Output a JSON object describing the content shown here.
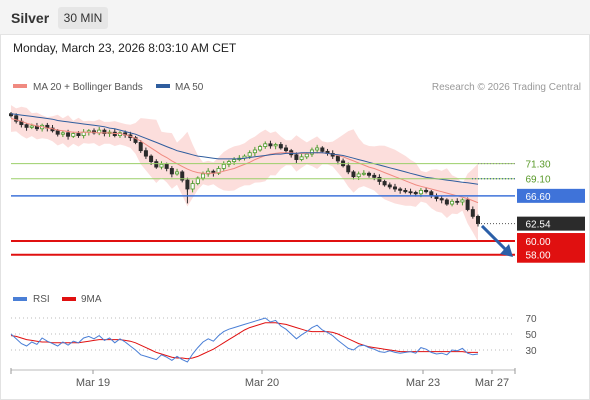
{
  "header": {
    "symbol": "Silver",
    "interval": "30 MIN",
    "datetime": "Monday, March 23, 2026 8:03:10 AM CET"
  },
  "legend": {
    "ma20": "MA 20 + Bollinger Bands",
    "ma50": "MA 50",
    "copyright": "Research © 2026 Trading Central",
    "rsi": "RSI",
    "rsi_ma": "9MA"
  },
  "colors": {
    "ma20": "#f08a80",
    "ma50": "#2f5d9e",
    "bollinger_fill": "#fbd3d0",
    "resistance": "#9bcf6a",
    "pivot": "#3f73d9",
    "support": "#e01010",
    "candle_up": "#4c9a2a",
    "candle_down": "#2b2b2b",
    "rsi": "#4a7fd6",
    "rsi_ma": "#e01010",
    "arrow": "#2b5fa8"
  },
  "chart_data": [
    {
      "type": "candlestick",
      "title": "Silver",
      "interval": "30 MIN",
      "x_ticks": [
        "Mar 19",
        "Mar 20",
        "Mar 23",
        "Mar 27"
      ],
      "ylim": [
        54.6,
        80.6
      ],
      "grid": false,
      "legend": "top-left",
      "series": [
        {
          "name": "MA 20 + Bollinger Bands",
          "type": "line"
        },
        {
          "name": "MA 50",
          "type": "line"
        }
      ],
      "levels": [
        {
          "label": "71.30",
          "value": 71.3,
          "kind": "resistance"
        },
        {
          "label": "69.10",
          "value": 69.1,
          "kind": "resistance"
        },
        {
          "label": "66.60",
          "value": 66.6,
          "kind": "pivot"
        },
        {
          "label": "62.54",
          "value": 62.54,
          "kind": "last"
        },
        {
          "label": "60.00",
          "value": 60.0,
          "kind": "support"
        },
        {
          "label": "58.00",
          "value": 58.0,
          "kind": "support"
        }
      ],
      "closes": [
        78.3,
        77.5,
        77.0,
        76.6,
        76.8,
        76.4,
        76.9,
        76.5,
        76.1,
        75.6,
        75.8,
        75.3,
        75.7,
        75.4,
        75.9,
        76.1,
        75.8,
        76.2,
        75.7,
        75.9,
        75.4,
        75.8,
        75.5,
        75.1,
        74.4,
        73.2,
        72.4,
        71.6,
        70.8,
        71.2,
        70.6,
        69.8,
        70.1,
        68.9,
        67.6,
        68.4,
        69.2,
        69.8,
        70.2,
        69.9,
        70.6,
        71.2,
        71.6,
        71.9,
        72.1,
        72.4,
        72.9,
        73.3,
        73.8,
        74.2,
        73.9,
        74.1,
        73.6,
        73.2,
        72.6,
        71.9,
        72.3,
        72.7,
        73.3,
        73.6,
        73.1,
        72.8,
        72.4,
        71.7,
        71.0,
        70.1,
        69.4,
        69.8,
        69.9,
        69.6,
        69.3,
        68.7,
        68.2,
        67.9,
        67.6,
        67.4,
        67.2,
        67.1,
        66.9,
        67.4,
        67.2,
        66.6,
        66.2,
        66.0,
        65.4,
        65.8,
        65.7,
        66.0,
        64.6,
        63.6,
        62.54
      ],
      "ma20": [
        77.9,
        77.7,
        77.5,
        77.2,
        77.0,
        76.8,
        76.7,
        76.5,
        76.4,
        76.2,
        76.1,
        76.0,
        75.9,
        75.9,
        75.9,
        75.9,
        75.9,
        75.8,
        75.8,
        75.8,
        75.7,
        75.7,
        75.5,
        75.3,
        75.0,
        74.6,
        74.1,
        73.6,
        73.1,
        72.6,
        72.2,
        71.7,
        71.3,
        70.9,
        70.5,
        70.2,
        70.0,
        69.9,
        69.9,
        69.9,
        70.0,
        70.2,
        70.4,
        70.6,
        70.9,
        71.2,
        71.5,
        71.9,
        72.2,
        72.5,
        72.7,
        72.8,
        72.9,
        72.9,
        72.9,
        72.8,
        72.8,
        72.8,
        72.9,
        72.9,
        72.9,
        72.8,
        72.7,
        72.5,
        72.3,
        72.0,
        71.7,
        71.4,
        71.1,
        70.8,
        70.6,
        70.3,
        70.0,
        69.7,
        69.4,
        69.1,
        68.8,
        68.5,
        68.2,
        68.0,
        67.8,
        67.6,
        67.4,
        67.2,
        67.0,
        66.8,
        66.6,
        66.4,
        66.2,
        65.9,
        65.6
      ],
      "ma50": [
        78.6,
        78.5,
        78.4,
        78.3,
        78.2,
        78.1,
        78.0,
        77.9,
        77.8,
        77.6,
        77.5,
        77.4,
        77.3,
        77.2,
        77.1,
        77.0,
        76.9,
        76.8,
        76.7,
        76.5,
        76.4,
        76.2,
        76.0,
        75.8,
        75.6,
        75.3,
        75.0,
        74.7,
        74.4,
        74.1,
        73.8,
        73.5,
        73.2,
        73.0,
        72.8,
        72.6,
        72.4,
        72.3,
        72.2,
        72.1,
        72.0,
        72.0,
        72.0,
        72.0,
        72.0,
        72.1,
        72.2,
        72.3,
        72.4,
        72.5,
        72.6,
        72.7,
        72.7,
        72.8,
        72.8,
        72.8,
        72.9,
        72.9,
        72.9,
        72.9,
        72.9,
        72.8,
        72.7,
        72.6,
        72.5,
        72.3,
        72.1,
        71.9,
        71.7,
        71.5,
        71.3,
        71.1,
        70.9,
        70.7,
        70.5,
        70.3,
        70.1,
        69.9,
        69.7,
        69.5,
        69.3,
        69.2,
        69.1,
        69.0,
        68.9,
        68.8,
        68.7,
        68.6,
        68.5,
        68.4,
        68.3
      ]
    },
    {
      "type": "line",
      "title": "RSI",
      "x_ticks": [
        "Mar 19",
        "Mar 20",
        "Mar 23",
        "Mar 27"
      ],
      "y_ticks": [
        70,
        50,
        30
      ],
      "ylim": [
        10,
        80
      ],
      "series": [
        {
          "name": "RSI",
          "values": [
            50,
            44,
            38,
            35,
            40,
            37,
            45,
            41,
            38,
            35,
            40,
            36,
            41,
            39,
            45,
            47,
            44,
            48,
            42,
            45,
            39,
            44,
            40,
            35,
            30,
            24,
            22,
            20,
            18,
            24,
            21,
            17,
            22,
            18,
            15,
            25,
            33,
            40,
            44,
            41,
            48,
            53,
            56,
            58,
            60,
            62,
            64,
            66,
            68,
            70,
            65,
            67,
            60,
            56,
            50,
            44,
            49,
            53,
            58,
            61,
            55,
            52,
            48,
            42,
            37,
            32,
            30,
            35,
            36,
            33,
            31,
            28,
            27,
            29,
            27,
            26,
            27,
            28,
            26,
            33,
            31,
            27,
            25,
            26,
            24,
            30,
            29,
            32,
            26,
            24,
            25
          ]
        },
        {
          "name": "9MA",
          "values": [
            48,
            47,
            45,
            43,
            42,
            41,
            40,
            40,
            39,
            39,
            39,
            39,
            39,
            39,
            40,
            41,
            42,
            43,
            43,
            43,
            43,
            43,
            42,
            41,
            39,
            36,
            33,
            30,
            27,
            25,
            23,
            21,
            20,
            20,
            19,
            20,
            22,
            25,
            28,
            31,
            35,
            39,
            43,
            47,
            51,
            55,
            58,
            60,
            62,
            64,
            64,
            64,
            63,
            62,
            60,
            58,
            56,
            54,
            53,
            53,
            53,
            53,
            52,
            50,
            47,
            44,
            41,
            38,
            36,
            34,
            33,
            32,
            31,
            30,
            29,
            28,
            28,
            28,
            28,
            28,
            28,
            28,
            28,
            28,
            28,
            28,
            28,
            28,
            27,
            27,
            27
          ]
        }
      ]
    }
  ]
}
